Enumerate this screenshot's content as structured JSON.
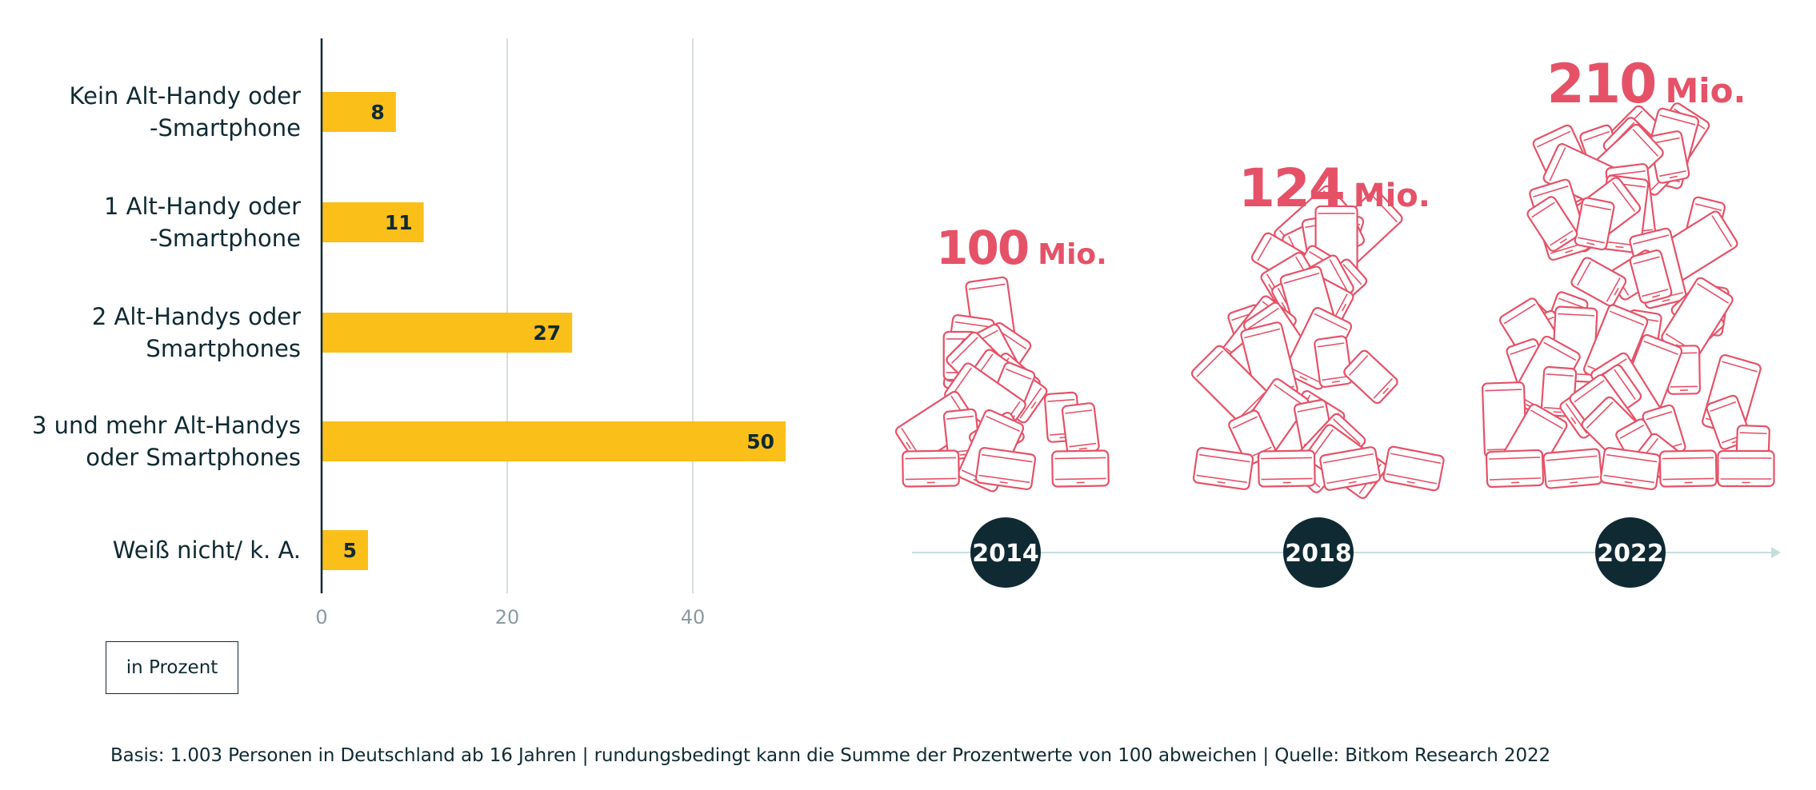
{
  "chart_data": [
    {
      "type": "bar",
      "orientation": "horizontal",
      "categories": [
        [
          "Kein Alt-Handy oder",
          "-Smartphone"
        ],
        [
          "1 Alt-Handy oder",
          "-Smartphone"
        ],
        [
          "2 Alt-Handys oder",
          "Smartphones"
        ],
        [
          "3 und mehr Alt-Handys",
          "oder Smartphones"
        ],
        [
          "Weiß nicht/ k. A."
        ]
      ],
      "values": [
        8,
        11,
        27,
        50,
        5
      ],
      "xticks": [
        0,
        20,
        40
      ],
      "xlim": [
        0,
        55
      ],
      "grid": true,
      "unit_label": "in Prozent",
      "bar_color": "#fbbf1a"
    },
    {
      "type": "pictogram",
      "entries": [
        {
          "year": "2014",
          "number": "100",
          "unit": "Mio."
        },
        {
          "year": "2018",
          "number": "124",
          "unit": "Mio."
        },
        {
          "year": "2022",
          "number": "210",
          "unit": "Mio."
        }
      ],
      "accent_color": "#e55268",
      "year_badge_color": "#0f2a33"
    }
  ],
  "footnote": "Basis: 1.003 Personen in Deutschland ab 16 Jahren | rundungsbedingt kann die Summe der Prozentwerte von 100 abweichen | Quelle: Bitkom Research 2022"
}
